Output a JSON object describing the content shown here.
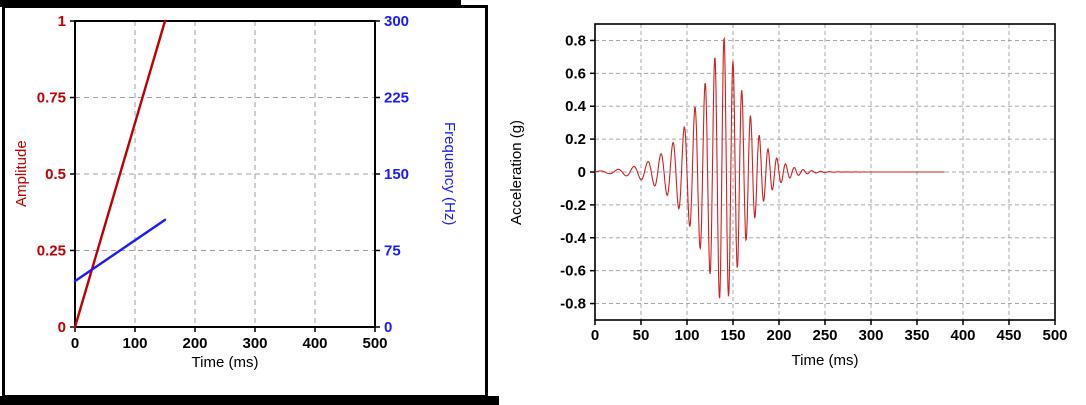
{
  "decorations": {
    "bar_color": "#000000",
    "panel_border_color": "#000000"
  },
  "charts": [
    {
      "name": "input-sweep-chart",
      "type": "line",
      "xlabel": "Time (ms)",
      "xlim": [
        0,
        500
      ],
      "x_ticks": {
        "values": [
          0,
          100,
          200,
          300,
          400,
          500
        ],
        "labels": [
          "0",
          "100",
          "200",
          "300",
          "400",
          "500"
        ],
        "color": "#000000"
      },
      "left_axis": {
        "label": "Amplitude",
        "color": "#c00000",
        "lim": [
          0,
          1
        ],
        "ticks": {
          "values": [
            0,
            0.25,
            0.5,
            0.75,
            1
          ],
          "labels": [
            "0",
            "0.25",
            "0.5",
            "0.75",
            "1"
          ]
        }
      },
      "right_axis": {
        "label": "Frequency (Hz)",
        "color": "#1a1aff",
        "lim": [
          0,
          300
        ],
        "ticks": {
          "values": [
            0,
            75,
            150,
            225,
            300
          ],
          "labels": [
            "0",
            "75",
            "150",
            "225",
            "300"
          ]
        }
      },
      "grid": {
        "color": "#a0a0a0",
        "dash": "5 4",
        "on": true
      },
      "legend": "none",
      "series": [
        {
          "name": "amplitude-ramp",
          "axis": "left",
          "color": "#c00000",
          "x": [
            0,
            150
          ],
          "y": [
            0,
            1
          ]
        },
        {
          "name": "frequency-sweep",
          "axis": "right",
          "color": "#1a1aff",
          "x": [
            0,
            150
          ],
          "y": [
            45,
            105
          ]
        }
      ]
    },
    {
      "name": "acceleration-chart",
      "type": "line",
      "xlabel": "Time (ms)",
      "ylabel": "Acceleration (g)",
      "xlim": [
        0,
        500
      ],
      "ylim": [
        -0.9,
        0.9
      ],
      "x_ticks": {
        "values": [
          0,
          50,
          100,
          150,
          200,
          250,
          300,
          350,
          400,
          450,
          500
        ],
        "labels": [
          "0",
          "50",
          "100",
          "150",
          "200",
          "250",
          "300",
          "350",
          "400",
          "450",
          "500"
        ],
        "color": "#000000"
      },
      "y_ticks": {
        "values": [
          -0.8,
          -0.6,
          -0.4,
          -0.2,
          0,
          0.2,
          0.4,
          0.6,
          0.8
        ],
        "labels": [
          "-0.8",
          "-0.6",
          "-0.4",
          "-0.2",
          "0",
          "0.2",
          "0.4",
          "0.6",
          "0.8"
        ],
        "color": "#000000"
      },
      "grid": {
        "color": "#a8a8a8",
        "dash": "4 3",
        "on": true
      },
      "legend": "none",
      "series": [
        {
          "name": "acceleration-burst",
          "color": "#cc2222",
          "signal": {
            "kind": "amplitude-modulated chirp burst",
            "t_start_ms": 0,
            "t_end_ms": 380,
            "sample_step_ms": 0.5,
            "peak_g": 0.82,
            "min_g": -0.72,
            "peak_time_ms": 140,
            "freq_start_hz": 45,
            "freq_end_hz": 105,
            "sweep_end_ms": 150,
            "rise_sigma_ms": 40,
            "rise_power": 1.3,
            "fall_sigma_ms": 32,
            "fall_power": 1.4
          }
        }
      ]
    }
  ]
}
